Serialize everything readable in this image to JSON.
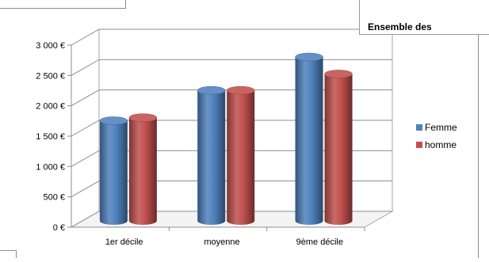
{
  "chart_data": {
    "type": "bar",
    "title": "Ensemble des",
    "categories": [
      "1er décile",
      "moyenne",
      "9ème décile"
    ],
    "series": [
      {
        "name": "Femme",
        "values": [
          1650,
          2150,
          2700
        ],
        "color": "#4f81bd"
      },
      {
        "name": "homme",
        "values": [
          1700,
          2150,
          2420
        ],
        "color": "#c0504d"
      }
    ],
    "y_ticks": [
      "0 €",
      "500 €",
      "1 000 €",
      "1 500 €",
      "2 000 €",
      "2 500 €",
      "3 000 €"
    ],
    "ylim": [
      0,
      3000
    ],
    "grid": true,
    "legend_position": "right",
    "style": "3d-cylinder"
  }
}
